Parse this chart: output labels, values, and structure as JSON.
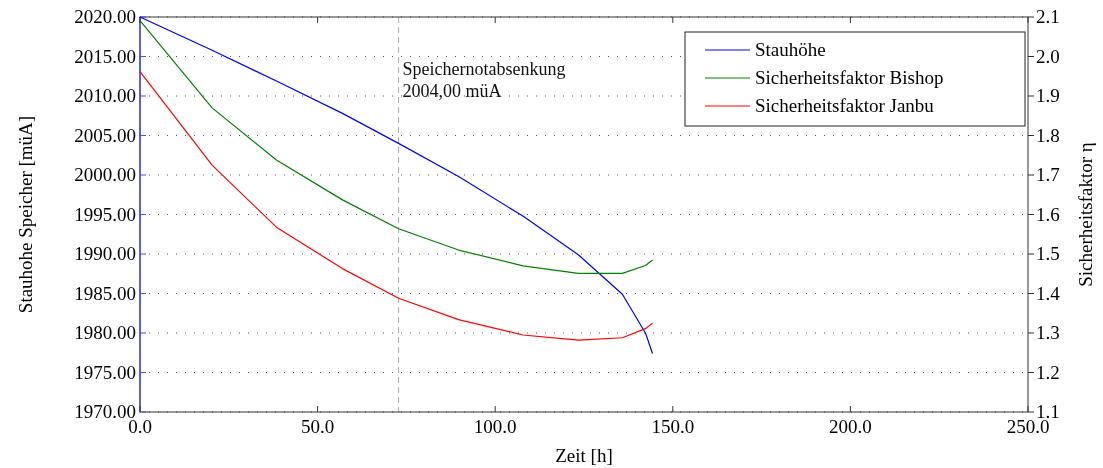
{
  "chart_data": {
    "type": "line",
    "xlabel": "Zeit [h]",
    "ylabel": "Stauhohe Speicher [müA]",
    "y2label": "Sicherheitsfaktor η",
    "x": [
      0,
      20.3,
      38.4,
      57,
      72.8,
      89.7,
      107.8,
      123.4,
      135.8,
      142.3,
      144.3
    ],
    "series": [
      {
        "name": "Stauhöhe",
        "color": "#0000ff",
        "values": [
          2020.0,
          2015.8,
          2011.9,
          2007.8,
          2004.0,
          1999.8,
          1994.8,
          1989.9,
          1984.9,
          1980.0,
          1977.4
        ]
      },
      {
        "name": "Sicherheitsfaktor Bishop",
        "color": "#008000",
        "axis": "y2",
        "values": [
          2.091,
          1.87,
          1.738,
          1.637,
          1.564,
          1.51,
          1.47,
          1.451,
          1.451,
          1.471,
          1.485
        ]
      },
      {
        "name": "Sicherheitsfaktor Janbu",
        "color": "#ff0000",
        "axis": "y2",
        "values": [
          1.962,
          1.725,
          1.568,
          1.463,
          1.388,
          1.334,
          1.295,
          1.282,
          1.288,
          1.311,
          1.325
        ]
      }
    ],
    "xlim": [
      0,
      250
    ],
    "xticks": [
      {
        "value": 0,
        "label": "0.0"
      },
      {
        "value": 50,
        "label": "50.0"
      },
      {
        "value": 100,
        "label": "100.0"
      },
      {
        "value": 150,
        "label": "150.0"
      },
      {
        "value": 200,
        "label": "200.0"
      },
      {
        "value": 250,
        "label": "250.0"
      }
    ],
    "ylim": [
      1970,
      2020
    ],
    "yticks": [
      {
        "value": 1970,
        "label": "1970.00"
      },
      {
        "value": 1975,
        "label": "1975.00"
      },
      {
        "value": 1980,
        "label": "1980.00"
      },
      {
        "value": 1985,
        "label": "1985.00"
      },
      {
        "value": 1990,
        "label": "1990.00"
      },
      {
        "value": 1995,
        "label": "1995.00"
      },
      {
        "value": 2000,
        "label": "2000.00"
      },
      {
        "value": 2005,
        "label": "2005.00"
      },
      {
        "value": 2010,
        "label": "2010.00"
      },
      {
        "value": 2015,
        "label": "2015.00"
      },
      {
        "value": 2020,
        "label": "2020.00"
      }
    ],
    "y2lim": [
      1.1,
      2.1
    ],
    "y2ticks": [
      {
        "value": 1.1,
        "label": "1.1"
      },
      {
        "value": 1.2,
        "label": "1.2"
      },
      {
        "value": 1.3,
        "label": "1.3"
      },
      {
        "value": 1.4,
        "label": "1.4"
      },
      {
        "value": 1.5,
        "label": "1.5"
      },
      {
        "value": 1.6,
        "label": "1.6"
      },
      {
        "value": 1.7,
        "label": "1.7"
      },
      {
        "value": 1.8,
        "label": "1.8"
      },
      {
        "value": 1.9,
        "label": "1.9"
      },
      {
        "value": 2.0,
        "label": "2.0"
      },
      {
        "value": 2.1,
        "label": "2.1"
      }
    ],
    "ref_lines": [
      {
        "axis": "x",
        "value": 72.8,
        "label": "Speichernotabsenkung\n2004,00 müA",
        "color": "#aaaaaa",
        "line_style": "dashed"
      }
    ],
    "grid": "y",
    "legend": "top right",
    "marker": "none",
    "line_style": "solid"
  }
}
